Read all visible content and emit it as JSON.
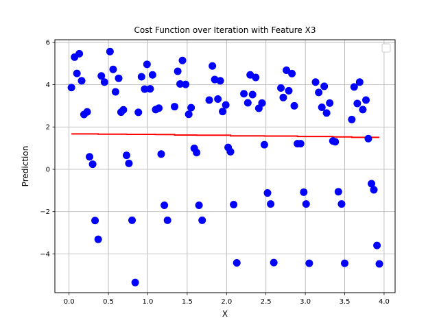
{
  "chart_data": {
    "type": "scatter",
    "title": "Cost Function over Iteration with Feature X3",
    "xlabel": "X",
    "ylabel": "Prediction",
    "xlim": [
      -0.18,
      4.14
    ],
    "ylim": [
      -5.83,
      6.12
    ],
    "xticks": [
      "0.0",
      "0.5",
      "1.0",
      "1.5",
      "2.0",
      "2.5",
      "3.0",
      "3.5",
      "4.0"
    ],
    "yticks": [
      "−4",
      "−2",
      "0",
      "2",
      "4",
      "6"
    ],
    "xtick_values": [
      0,
      0.5,
      1,
      1.5,
      2,
      2.5,
      3,
      3.5,
      4
    ],
    "ytick_values": [
      -4,
      -2,
      0,
      2,
      4,
      6
    ],
    "grid": true,
    "legend": {
      "placement": "top-right",
      "entries": []
    },
    "series": [
      {
        "kind": "scatter",
        "color": "#0000ff",
        "points": [
          [
            0.03,
            3.86
          ],
          [
            0.07,
            5.3
          ],
          [
            0.1,
            4.53
          ],
          [
            0.13,
            5.46
          ],
          [
            0.16,
            4.18
          ],
          [
            0.19,
            2.59
          ],
          [
            0.23,
            2.71
          ],
          [
            0.26,
            0.59
          ],
          [
            0.3,
            0.24
          ],
          [
            0.33,
            -2.42
          ],
          [
            0.37,
            -3.31
          ],
          [
            0.41,
            4.41
          ],
          [
            0.45,
            4.12
          ],
          [
            0.52,
            5.56
          ],
          [
            0.56,
            4.72
          ],
          [
            0.59,
            3.66
          ],
          [
            0.63,
            4.3
          ],
          [
            0.66,
            2.7
          ],
          [
            0.69,
            2.81
          ],
          [
            0.73,
            0.66
          ],
          [
            0.76,
            0.28
          ],
          [
            0.8,
            -2.41
          ],
          [
            0.84,
            -5.35
          ],
          [
            0.88,
            2.69
          ],
          [
            0.92,
            4.37
          ],
          [
            0.96,
            3.79
          ],
          [
            0.99,
            4.96
          ],
          [
            1.03,
            3.8
          ],
          [
            1.06,
            4.46
          ],
          [
            1.1,
            2.82
          ],
          [
            1.14,
            2.89
          ],
          [
            1.17,
            0.72
          ],
          [
            1.21,
            -1.7
          ],
          [
            1.25,
            -2.41
          ],
          [
            1.34,
            2.96
          ],
          [
            1.38,
            4.63
          ],
          [
            1.41,
            4.03
          ],
          [
            1.44,
            5.14
          ],
          [
            1.48,
            4.01
          ],
          [
            1.52,
            2.6
          ],
          [
            1.55,
            2.91
          ],
          [
            1.59,
            0.99
          ],
          [
            1.62,
            0.79
          ],
          [
            1.65,
            -1.7
          ],
          [
            1.69,
            -2.41
          ],
          [
            1.78,
            3.27
          ],
          [
            1.82,
            4.88
          ],
          [
            1.85,
            4.24
          ],
          [
            1.89,
            3.32
          ],
          [
            1.92,
            4.18
          ],
          [
            1.95,
            2.73
          ],
          [
            1.99,
            3.04
          ],
          [
            2.02,
            1.03
          ],
          [
            2.05,
            0.83
          ],
          [
            2.09,
            -1.67
          ],
          [
            2.13,
            -4.42
          ],
          [
            2.22,
            3.57
          ],
          [
            2.27,
            3.14
          ],
          [
            2.3,
            4.46
          ],
          [
            2.33,
            3.53
          ],
          [
            2.37,
            4.34
          ],
          [
            2.41,
            2.88
          ],
          [
            2.45,
            3.13
          ],
          [
            2.48,
            1.16
          ],
          [
            2.52,
            -1.12
          ],
          [
            2.56,
            -1.64
          ],
          [
            2.6,
            -4.41
          ],
          [
            2.69,
            3.84
          ],
          [
            2.72,
            3.39
          ],
          [
            2.76,
            4.68
          ],
          [
            2.79,
            3.71
          ],
          [
            2.83,
            4.52
          ],
          [
            2.86,
            3.0
          ],
          [
            2.9,
            1.21
          ],
          [
            2.94,
            1.21
          ],
          [
            2.98,
            -1.08
          ],
          [
            3.01,
            -1.64
          ],
          [
            3.05,
            -4.44
          ],
          [
            3.13,
            4.12
          ],
          [
            3.17,
            3.63
          ],
          [
            3.21,
            2.93
          ],
          [
            3.24,
            3.92
          ],
          [
            3.27,
            2.66
          ],
          [
            3.31,
            3.13
          ],
          [
            3.35,
            1.34
          ],
          [
            3.38,
            1.3
          ],
          [
            3.42,
            -1.06
          ],
          [
            3.46,
            -1.64
          ],
          [
            3.5,
            -4.44
          ],
          [
            3.59,
            2.35
          ],
          [
            3.62,
            3.89
          ],
          [
            3.66,
            3.11
          ],
          [
            3.69,
            4.12
          ],
          [
            3.73,
            2.82
          ],
          [
            3.77,
            3.27
          ],
          [
            3.8,
            1.45
          ],
          [
            3.84,
            -0.68
          ],
          [
            3.87,
            -0.97
          ],
          [
            3.91,
            -3.6
          ],
          [
            3.94,
            -4.47
          ]
        ]
      },
      {
        "kind": "line",
        "color": "#ff0000",
        "points": [
          [
            0.03,
            1.67
          ],
          [
            0.37,
            1.67
          ],
          [
            0.37,
            1.66
          ],
          [
            0.73,
            1.66
          ],
          [
            0.73,
            1.65
          ],
          [
            1.1,
            1.65
          ],
          [
            1.1,
            1.64
          ],
          [
            1.34,
            1.64
          ],
          [
            1.34,
            1.62
          ],
          [
            1.62,
            1.62
          ],
          [
            1.62,
            1.61
          ],
          [
            2.05,
            1.61
          ],
          [
            2.05,
            1.58
          ],
          [
            2.48,
            1.58
          ],
          [
            2.48,
            1.57
          ],
          [
            2.9,
            1.57
          ],
          [
            2.9,
            1.55
          ],
          [
            3.35,
            1.55
          ],
          [
            3.35,
            1.53
          ],
          [
            3.59,
            1.53
          ],
          [
            3.59,
            1.51
          ],
          [
            3.94,
            1.51
          ]
        ]
      }
    ]
  }
}
